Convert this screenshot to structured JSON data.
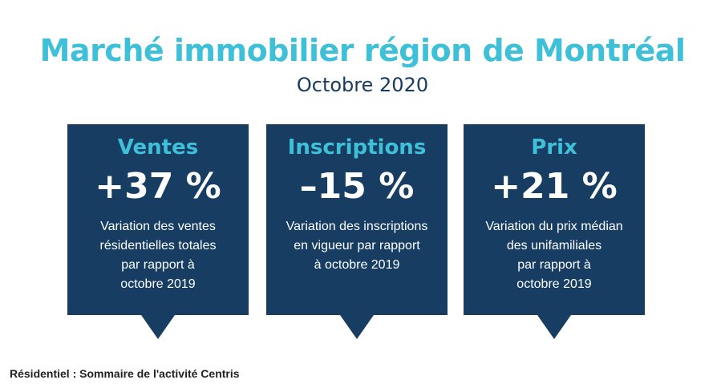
{
  "header": {
    "title": "Marché immobilier région de Montréal",
    "subtitle": "Octobre 2020"
  },
  "cards": [
    {
      "label": "Ventes",
      "value": "+37 %",
      "description_lines": [
        "Variation des ventes",
        "résidentielles totales",
        "par rapport à",
        "octobre 2019"
      ]
    },
    {
      "label": "Inscriptions",
      "value": "–15 %",
      "description_lines": [
        "Variation des inscriptions",
        "en vigueur par rapport",
        "à octobre 2019"
      ]
    },
    {
      "label": "Prix",
      "value": "+21 %",
      "description_lines": [
        "Variation du prix médian",
        "des unifamiliales",
        "par rapport à",
        "octobre 2019"
      ]
    }
  ],
  "footer": {
    "text": "Résidentiel : Sommaire de l'activité Centris"
  },
  "colors": {
    "accent": "#3fc0d9",
    "card_background": "#173e62",
    "subtitle": "#173a5e",
    "card_text": "#ffffff"
  }
}
